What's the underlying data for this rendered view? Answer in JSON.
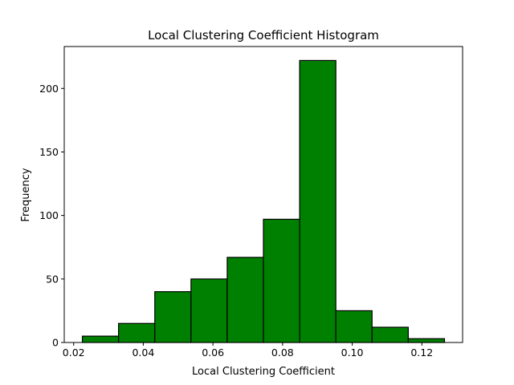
{
  "chart_data": {
    "type": "bar",
    "title": "Local Clustering Coefficient Histogram",
    "xlabel": "Local Clustering Coefficient",
    "ylabel": "Frequency",
    "bar_color": "#008000",
    "edge_color": "#000000",
    "bins": [
      {
        "x0": 0.0225,
        "x1": 0.0329,
        "count": 5
      },
      {
        "x0": 0.0329,
        "x1": 0.0433,
        "count": 15
      },
      {
        "x0": 0.0433,
        "x1": 0.0537,
        "count": 40
      },
      {
        "x0": 0.0537,
        "x1": 0.0641,
        "count": 50
      },
      {
        "x0": 0.0641,
        "x1": 0.0745,
        "count": 67
      },
      {
        "x0": 0.0745,
        "x1": 0.0849,
        "count": 97
      },
      {
        "x0": 0.0849,
        "x1": 0.0953,
        "count": 222
      },
      {
        "x0": 0.0953,
        "x1": 0.1057,
        "count": 25
      },
      {
        "x0": 0.1057,
        "x1": 0.1161,
        "count": 12
      },
      {
        "x0": 0.1161,
        "x1": 0.1265,
        "count": 3
      }
    ],
    "xlim": [
      0.0173,
      0.1317
    ],
    "ylim": [
      0,
      233
    ],
    "xticks": [
      {
        "value": 0.02,
        "label": "0.02"
      },
      {
        "value": 0.04,
        "label": "0.04"
      },
      {
        "value": 0.06,
        "label": "0.06"
      },
      {
        "value": 0.08,
        "label": "0.08"
      },
      {
        "value": 0.1,
        "label": "0.10"
      },
      {
        "value": 0.12,
        "label": "0.12"
      }
    ],
    "yticks": [
      {
        "value": 0,
        "label": "0"
      },
      {
        "value": 50,
        "label": "50"
      },
      {
        "value": 100,
        "label": "100"
      },
      {
        "value": 150,
        "label": "150"
      },
      {
        "value": 200,
        "label": "200"
      }
    ],
    "grid": false
  }
}
